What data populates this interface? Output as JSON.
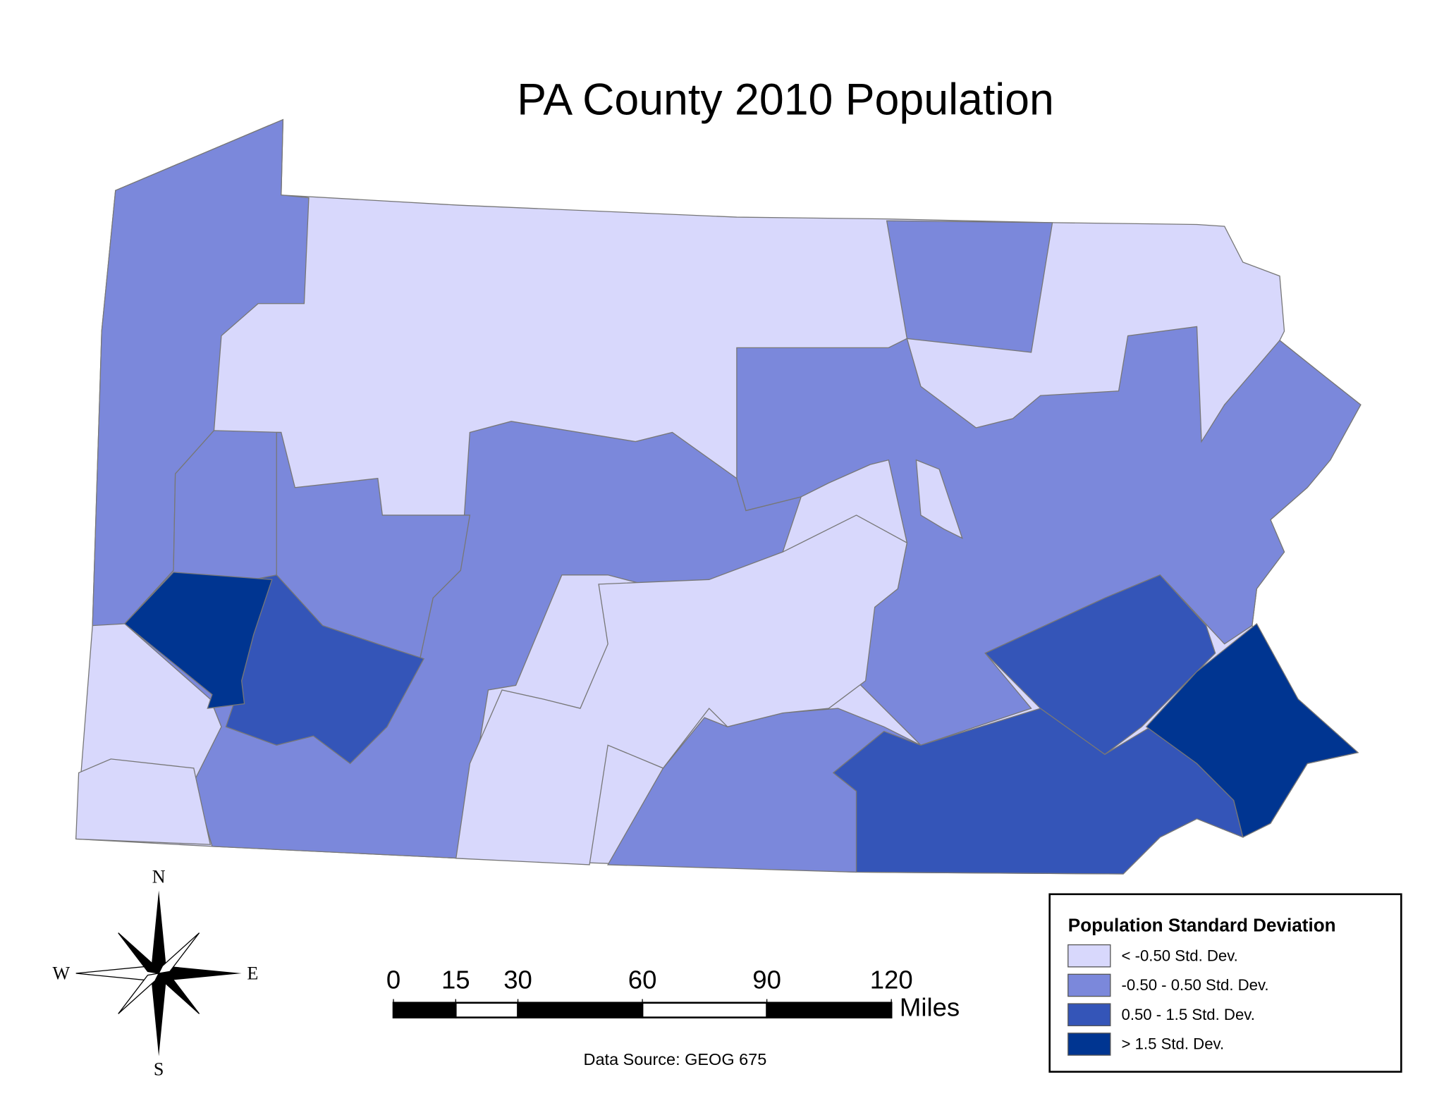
{
  "title": "PA County 2010 Population",
  "legend": {
    "title": "Population Standard Deviation",
    "items": [
      {
        "label": "< -0.50 Std. Dev.",
        "color": "#d8d8fc"
      },
      {
        "label": "-0.50 - 0.50 Std. Dev.",
        "color": "#7b88db"
      },
      {
        "label": "0.50 - 1.5 Std. Dev.",
        "color": "#3455b8"
      },
      {
        "label": "> 1.5 Std. Dev.",
        "color": "#003591"
      }
    ]
  },
  "scale_bar": {
    "ticks": [
      0,
      15,
      30,
      60,
      90,
      120
    ],
    "unit": "Miles"
  },
  "compass": {
    "north": "N",
    "east": "E",
    "south": "S",
    "west": "W"
  },
  "source": "Data Source: GEOG 675"
}
